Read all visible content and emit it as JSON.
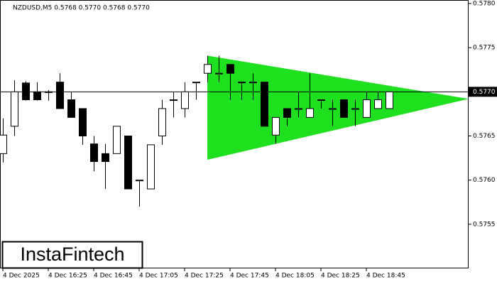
{
  "chart_data": {
    "type": "candlestick",
    "subtitle": "NZDUSD,M5  0.5768 0.5770 0.5768 0.5770",
    "logo": "InstaFintech",
    "categories": [
      "4 Dec 2025",
      null,
      null,
      null,
      "4 Dec 16:25",
      null,
      null,
      null,
      "4 Dec 16:45",
      null,
      null,
      null,
      "4 Dec 17:05",
      null,
      null,
      null,
      "4 Dec 17:25",
      null,
      null,
      null,
      "4 Dec 17:45",
      null,
      null,
      null,
      "4 Dec 18:05",
      null,
      null,
      null,
      "4 Dec 18:25",
      null,
      null,
      null,
      "4 Dec 18:45",
      null,
      null
    ],
    "open": [
      0.5763,
      0.57661,
      0.5771,
      0.577,
      0.577,
      0.57711,
      0.57691,
      0.57681,
      0.57641,
      0.5763,
      0.5763,
      0.5765,
      0.576,
      0.5759,
      0.5765,
      0.57691,
      0.57681,
      0.57711,
      0.57721,
      0.57721,
      0.57731,
      0.57711,
      0.57711,
      0.57711,
      0.57651,
      0.57681,
      0.57681,
      0.57671,
      0.57691,
      0.57681,
      0.57691,
      0.57681,
      0.57671,
      0.57681,
      0.57681
    ],
    "high": [
      0.5767,
      0.57713,
      0.57712,
      0.57711,
      0.57702,
      0.57721,
      0.577,
      0.57681,
      0.5765,
      0.57641,
      0.57661,
      0.5765,
      0.576,
      0.5764,
      0.57691,
      0.577,
      0.57711,
      0.57711,
      0.57741,
      0.57741,
      0.57731,
      0.57711,
      0.57721,
      0.57711,
      0.57671,
      0.57681,
      0.577,
      0.57721,
      0.57691,
      0.57691,
      0.57691,
      0.57691,
      0.577,
      0.577,
      0.577
    ],
    "low": [
      0.5762,
      0.5765,
      0.5769,
      0.5769,
      0.5769,
      0.57681,
      0.57671,
      0.5764,
      0.5761,
      0.5759,
      0.5763,
      0.5759,
      0.5757,
      0.5759,
      0.5764,
      0.57671,
      0.57671,
      0.57691,
      0.57711,
      0.57711,
      0.57691,
      0.57691,
      0.57691,
      0.57661,
      0.57641,
      0.57661,
      0.57671,
      0.57671,
      0.57681,
      0.57661,
      0.57671,
      0.57661,
      0.57671,
      0.57681,
      0.57681
    ],
    "close": [
      0.57651,
      0.577,
      0.57691,
      0.57691,
      0.577,
      0.57681,
      0.57671,
      0.5765,
      0.57621,
      0.57621,
      0.57661,
      0.5759,
      0.576,
      0.5764,
      0.57681,
      0.57691,
      0.577,
      0.57711,
      0.57731,
      0.57721,
      0.57721,
      0.57711,
      0.57711,
      0.57661,
      0.57671,
      0.57671,
      0.57681,
      0.57681,
      0.57691,
      0.57681,
      0.57671,
      0.57681,
      0.57691,
      0.57691,
      0.577
    ],
    "up_color": "#ffffff",
    "down_color": "#000000",
    "triangle": {
      "color": "#1ee01e",
      "upper": [
        0.57741,
        0.57692
      ],
      "lower": [
        0.57623,
        0.57692
      ]
    },
    "current_price": {
      "value": 0.577,
      "label": "0.5770"
    },
    "ylim": [
      0.575,
      0.57804
    ],
    "yticks": [
      {
        "value": 0.578,
        "label": "0.5780"
      },
      {
        "value": 0.5775,
        "label": "0.5775"
      },
      {
        "value": 0.5765,
        "label": "0.5765"
      },
      {
        "value": 0.576,
        "label": "0.5760"
      },
      {
        "value": 0.5755,
        "label": "0.5755"
      }
    ]
  }
}
